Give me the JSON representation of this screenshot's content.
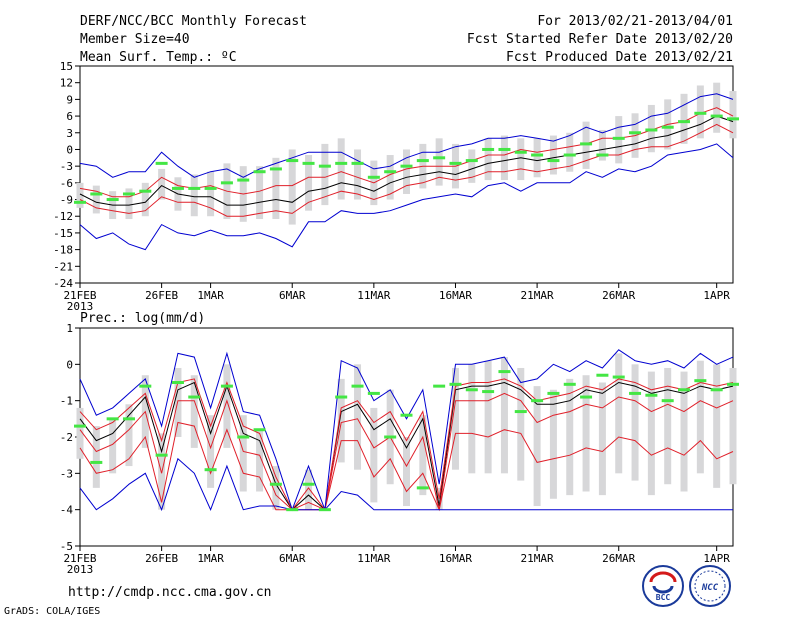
{
  "header": {
    "title": "DERF/NCC/BCC Monthly Forecast",
    "member_size": "Member Size=40",
    "variable": "Mean Surf. Temp.: ºC",
    "period": "For 2013/02/21-2013/04/01",
    "fcst_started": "Fcst Started Refer Date 2013/02/20",
    "fcst_produced": "Fcst Produced Date 2013/02/21"
  },
  "footer": {
    "url": "http://cmdp.ncc.cma.gov.cn",
    "credit": "GrADS: COLA/IGES",
    "logo_bcc": "BCC",
    "logo_ncc": "NCC"
  },
  "colors": {
    "mean": "#000000",
    "inner_band": "#e0202a",
    "outer_band": "#0000d0",
    "range_bar": "#d7d7d9",
    "marker": "#44e644"
  },
  "chart_data": [
    {
      "type": "line",
      "title": "Mean Surf. Temp.: ºC",
      "ylim": [
        -24,
        15
      ],
      "yticks": [
        15,
        12,
        9,
        6,
        3,
        0,
        -3,
        -6,
        -9,
        -12,
        -15,
        -18,
        -21,
        -24
      ],
      "xlim": [
        0,
        40
      ],
      "xticks": [
        {
          "day": 0,
          "label": "21FEB",
          "sub": "2013"
        },
        {
          "day": 5,
          "label": "26FEB"
        },
        {
          "day": 8,
          "label": "1MAR"
        },
        {
          "day": 13,
          "label": "6MAR"
        },
        {
          "day": 18,
          "label": "11MAR"
        },
        {
          "day": 23,
          "label": "16MAR"
        },
        {
          "day": 28,
          "label": "21MAR"
        },
        {
          "day": 33,
          "label": "26MAR"
        },
        {
          "day": 39,
          "label": "1APR"
        }
      ],
      "series": [
        {
          "name": "ensemble-mean",
          "role": "mean",
          "values": [
            -8,
            -9.5,
            -10,
            -10,
            -9.5,
            -6.5,
            -8,
            -8.5,
            -8.5,
            -10,
            -10,
            -9.5,
            -9,
            -9.5,
            -7.5,
            -7,
            -6,
            -6.5,
            -7.5,
            -6,
            -5,
            -4.5,
            -4,
            -4.5,
            -3.5,
            -2.5,
            -2,
            -1.5,
            -2,
            -1.5,
            -1,
            -0.5,
            0,
            0.5,
            1,
            2,
            2.5,
            3.5,
            4.5,
            6,
            5
          ]
        },
        {
          "name": "upper-inner",
          "role": "inner",
          "values": [
            -7,
            -7.5,
            -8.5,
            -8.5,
            -7.5,
            -5,
            -6.5,
            -7,
            -6.5,
            -7.5,
            -8,
            -7.5,
            -6.5,
            -6.5,
            -5,
            -5,
            -4,
            -5,
            -6,
            -4.5,
            -3.5,
            -3,
            -3,
            -3,
            -2,
            -1,
            -1,
            0,
            -0.5,
            0,
            0.5,
            1,
            2,
            2,
            2.5,
            3.5,
            4.5,
            5,
            6.5,
            7.5,
            6
          ]
        },
        {
          "name": "lower-inner",
          "role": "inner",
          "values": [
            -9,
            -10.5,
            -11,
            -11.5,
            -11,
            -8.5,
            -9.5,
            -9.5,
            -10.5,
            -12,
            -12,
            -11.5,
            -11,
            -11.5,
            -9.5,
            -8.5,
            -7.5,
            -8,
            -9,
            -8,
            -6.5,
            -6,
            -5,
            -5.5,
            -5,
            -4,
            -4,
            -3.5,
            -4,
            -3.5,
            -3,
            -2,
            -1,
            -1,
            0,
            0.5,
            0.5,
            1.5,
            3,
            4.5,
            3
          ]
        },
        {
          "name": "upper-outer",
          "role": "outer",
          "values": [
            -2.5,
            -3,
            -5,
            -4,
            -4,
            -0.5,
            -3,
            -5,
            -4,
            -3.5,
            -5,
            -3.5,
            -2.5,
            -1.5,
            -0.5,
            -0.5,
            -0.5,
            -2,
            -3.5,
            -3,
            -1.5,
            -0.5,
            -0.5,
            0.5,
            1,
            2,
            2,
            2.5,
            2,
            1.5,
            2.5,
            4,
            3,
            4,
            4.5,
            6,
            6.5,
            8,
            9.5,
            10,
            9
          ]
        },
        {
          "name": "lower-outer",
          "role": "outer",
          "values": [
            -13.5,
            -16,
            -15,
            -17,
            -18,
            -13.5,
            -15,
            -15.5,
            -14.5,
            -15.5,
            -15.5,
            -15,
            -16,
            -17.5,
            -13,
            -13,
            -11,
            -11.5,
            -11.5,
            -11,
            -10,
            -9,
            -8.5,
            -8,
            -8.5,
            -6.5,
            -6,
            -7.5,
            -6,
            -6,
            -6,
            -4,
            -5,
            -3.5,
            -4,
            -3,
            -1,
            -0.5,
            0,
            1,
            -1.5
          ]
        }
      ],
      "range_bars": {
        "low": [
          -10.5,
          -11.5,
          -12.5,
          -12.5,
          -12,
          -9,
          -11,
          -12,
          -12,
          -12.5,
          -13,
          -12.5,
          -12.5,
          -13.5,
          -11,
          -10,
          -9,
          -9,
          -10,
          -9,
          -8,
          -7,
          -6.5,
          -7,
          -6,
          -5.5,
          -5.5,
          -5.5,
          -5,
          -4.5,
          -4,
          -3.5,
          -2,
          -2.5,
          -1.5,
          -0.5,
          0,
          1,
          2,
          3,
          2
        ],
        "high": [
          -6,
          -6.5,
          -7.5,
          -7,
          -6,
          -3.5,
          -5,
          -4.5,
          -4,
          -2.5,
          -3,
          -3,
          -1.5,
          0,
          -1,
          1,
          2,
          0,
          -2,
          -1,
          0,
          1,
          2,
          1,
          0,
          2,
          2.5,
          2,
          2,
          2.5,
          3,
          5,
          3.5,
          6,
          6.5,
          8,
          9,
          10,
          11.5,
          12,
          10.5
        ]
      },
      "markers": [
        -9.5,
        -8,
        -9,
        -8,
        -7.5,
        -2.5,
        -7,
        -7,
        -7,
        -6,
        -5.5,
        -4,
        -3.5,
        -2,
        -2.5,
        -3,
        -2.5,
        -2.5,
        -5,
        -4,
        -3,
        -2,
        -1.5,
        -2.5,
        -2,
        0,
        0,
        -0.5,
        -1,
        -2,
        -1,
        1,
        -1,
        2,
        3,
        3.5,
        4,
        5,
        6.5,
        6,
        5.5
      ]
    },
    {
      "type": "line",
      "title": "Prec.: log(mm/d)",
      "ylim": [
        -5,
        1
      ],
      "yticks": [
        1,
        0,
        -1,
        -2,
        -3,
        -4,
        -5
      ],
      "xlim": [
        0,
        40
      ],
      "xticks": [
        {
          "day": 0,
          "label": "21FEB",
          "sub": "2013"
        },
        {
          "day": 5,
          "label": "26FEB"
        },
        {
          "day": 8,
          "label": "1MAR"
        },
        {
          "day": 13,
          "label": "6MAR"
        },
        {
          "day": 18,
          "label": "11MAR"
        },
        {
          "day": 23,
          "label": "16MAR"
        },
        {
          "day": 28,
          "label": "21MAR"
        },
        {
          "day": 33,
          "label": "26MAR"
        },
        {
          "day": 39,
          "label": "1APR"
        }
      ],
      "series": [
        {
          "name": "ensemble-mean",
          "role": "mean",
          "values": [
            -1.5,
            -2.1,
            -1.9,
            -1.4,
            -0.9,
            -2.4,
            -0.7,
            -0.5,
            -1.9,
            -0.6,
            -1.9,
            -2.1,
            -3.3,
            -4,
            -3.6,
            -4,
            -1.3,
            -1.1,
            -1.8,
            -1.5,
            -2.3,
            -1.5,
            -3.9,
            -0.7,
            -0.6,
            -0.6,
            -0.5,
            -0.7,
            -1.1,
            -1.1,
            -1,
            -0.7,
            -0.8,
            -0.5,
            -0.6,
            -0.8,
            -0.7,
            -0.8,
            -0.6,
            -0.7,
            -0.6
          ]
        },
        {
          "name": "upper-inner",
          "role": "inner",
          "values": [
            -1.3,
            -1.8,
            -1.6,
            -1.2,
            -0.8,
            -2.1,
            -0.5,
            -0.4,
            -1.7,
            -0.5,
            -1.7,
            -1.9,
            -3.1,
            -4,
            -3.4,
            -4,
            -1.2,
            -1,
            -1.6,
            -1.3,
            -2.1,
            -1.3,
            -3.7,
            -0.6,
            -0.5,
            -0.5,
            -0.4,
            -0.6,
            -1,
            -0.9,
            -0.8,
            -0.6,
            -0.7,
            -0.4,
            -0.5,
            -0.7,
            -0.6,
            -0.7,
            -0.5,
            -0.6,
            -0.5
          ]
        },
        {
          "name": "mid-inner",
          "role": "inner",
          "values": [
            -1.8,
            -2.4,
            -2.2,
            -1.8,
            -1.3,
            -3,
            -1,
            -1,
            -2.3,
            -1,
            -2.4,
            -2.5,
            -3.6,
            -4,
            -3.8,
            -4,
            -1.6,
            -1.5,
            -2.3,
            -2,
            -2.8,
            -2,
            -4,
            -1,
            -1,
            -1,
            -0.8,
            -1,
            -1.6,
            -1.4,
            -1.3,
            -1.1,
            -1.2,
            -0.9,
            -1,
            -1.3,
            -1.1,
            -1.3,
            -1,
            -1.2,
            -1
          ]
        },
        {
          "name": "lower-inner",
          "role": "inner",
          "values": [
            -2.3,
            -3,
            -2.9,
            -2.6,
            -2,
            -3.8,
            -1.6,
            -1.7,
            -3,
            -1.8,
            -3,
            -3.1,
            -4,
            -4,
            -4,
            -4,
            -2.1,
            -2.1,
            -3.1,
            -2.6,
            -3.5,
            -3,
            -4,
            -1.9,
            -1.9,
            -2,
            -1.8,
            -1.9,
            -2.7,
            -2.6,
            -2.5,
            -2.3,
            -2.4,
            -2,
            -2.1,
            -2.5,
            -2.3,
            -2.5,
            -2.1,
            -2.6,
            -2.4
          ]
        },
        {
          "name": "upper-outer",
          "role": "outer",
          "values": [
            -0.4,
            -1.4,
            -1.2,
            -0.8,
            -0.4,
            -1.7,
            0.3,
            0.2,
            -1.2,
            0.3,
            -1.3,
            -1.4,
            -2.6,
            -4,
            -2.8,
            -4,
            0.1,
            -0.1,
            -1,
            -0.7,
            -1.5,
            -0.7,
            -3.3,
            0,
            0,
            0.1,
            0.2,
            -0.5,
            -0.4,
            0,
            -0.2,
            0.1,
            -0.1,
            0.4,
            0.1,
            0,
            0.1,
            -0.1,
            0.3,
            0,
            0.2
          ]
        },
        {
          "name": "lower-outer",
          "role": "outer",
          "values": [
            -3.4,
            -4,
            -3.7,
            -3.3,
            -3,
            -4,
            -2.6,
            -3,
            -4,
            -2.8,
            -4,
            -3.9,
            -3.9,
            -4,
            -4,
            -4,
            -3.5,
            -3.6,
            -4,
            -4,
            -4,
            -4,
            -4,
            -4,
            -4,
            -4,
            -4,
            -4,
            -4,
            -4,
            -4,
            -4,
            -4,
            -4,
            -4,
            -4,
            -4,
            -4,
            -4,
            -4,
            -4
          ]
        }
      ],
      "range_bars": {
        "low": [
          -2.6,
          -3.4,
          -3,
          -2.8,
          -2.3,
          -4,
          -2,
          -2.3,
          -3.4,
          -2.3,
          -3.5,
          -3.5,
          -4,
          -4,
          -4,
          -4,
          -2.7,
          -2.9,
          -3.8,
          -3.3,
          -3.9,
          -3.6,
          -4,
          -2.9,
          -3,
          -3,
          -3,
          -3.2,
          -3.9,
          -3.7,
          -3.6,
          -3.5,
          -3.6,
          -3,
          -3.2,
          -3.6,
          -3.3,
          -3.5,
          -3,
          -3.4,
          -3.3
        ],
        "high": [
          -1.2,
          -1.7,
          -1.5,
          -1.1,
          -0.3,
          -1.9,
          -0.1,
          -0.3,
          -1.4,
          0,
          -1.4,
          -1.8,
          -2.8,
          -4,
          -2.9,
          -4,
          -0.4,
          0,
          -1.2,
          -0.7,
          -2,
          -1.4,
          -3.4,
          -0.1,
          0,
          0.1,
          0.2,
          -0.1,
          -0.6,
          -0.7,
          -0.4,
          -0.3,
          -0.5,
          0.3,
          0,
          -0.2,
          -0.1,
          -0.2,
          0.1,
          0,
          -0.1
        ]
      },
      "markers": [
        -1.7,
        -2.7,
        -1.5,
        -1.5,
        -0.6,
        -2.5,
        -0.5,
        -0.9,
        -2.9,
        -0.6,
        -2,
        -1.8,
        -3.3,
        -4,
        -3.3,
        -4,
        -0.9,
        -0.6,
        -0.8,
        -2,
        -1.4,
        -3.4,
        -0.6,
        -0.55,
        -0.7,
        -0.75,
        -0.2,
        -1.3,
        -1,
        -0.8,
        -0.55,
        -0.9,
        -0.3,
        -0.35,
        -0.8,
        -0.85,
        -1,
        -0.7,
        -0.45,
        -0.7,
        -0.55
      ]
    }
  ]
}
